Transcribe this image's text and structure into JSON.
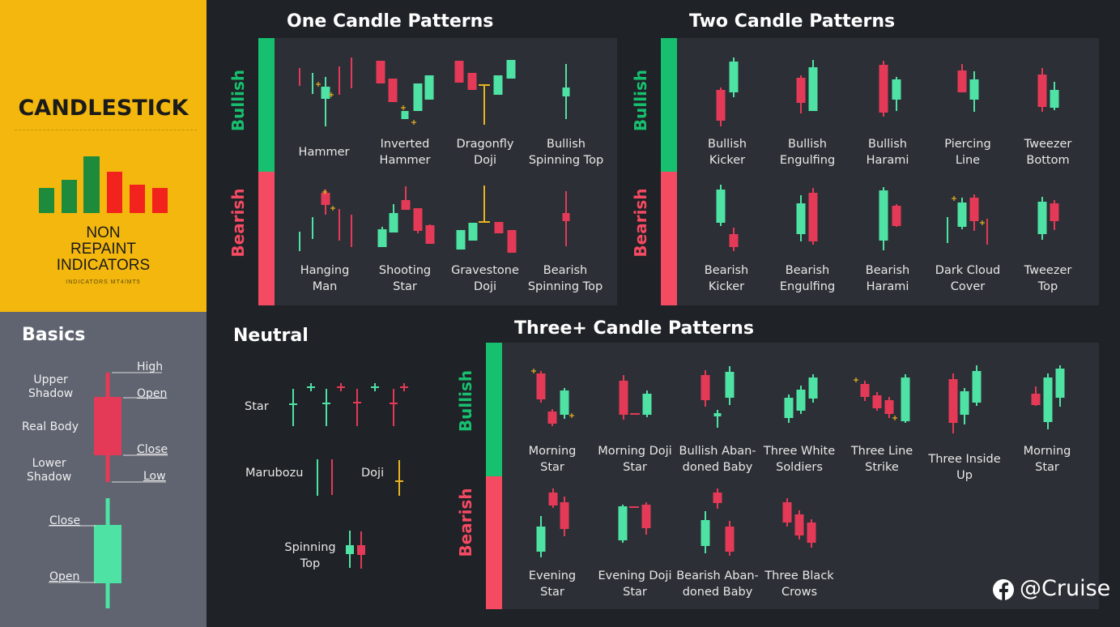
{
  "brand": {
    "title": "CANDLESTICK",
    "lines": [
      "NON",
      "REPAINT",
      "INDICATORS"
    ],
    "small": "INDICATORS MT4/MT5"
  },
  "colors": {
    "bull": "#4ee3a4",
    "bear": "#e43a57",
    "bull_strip": "#17c06f",
    "bear_strip": "#f44a62",
    "doji": "#e8b420",
    "panel": "#2c2f35",
    "yellow": "#f3b70d"
  },
  "sections": {
    "one": "One Candle Patterns",
    "two": "Two Candle Patterns",
    "neutral": "Neutral",
    "three": "Three+ Candle Patterns"
  },
  "labels": {
    "bullish": "Bullish",
    "bearish": "Bearish"
  },
  "basics": {
    "title": "Basics",
    "upper_shadow": [
      "Upper",
      "Shadow"
    ],
    "real_body": "Real Body",
    "lower_shadow": [
      "Lower",
      "Shadow"
    ],
    "high": "High",
    "open": "Open",
    "close": "Close",
    "low": "Low",
    "close2": "Close",
    "open2": "Open"
  },
  "one_candle": {
    "bullish": [
      [
        "Hammer"
      ],
      [
        "Inverted",
        "Hammer"
      ],
      [
        "Dragonfly",
        "Doji"
      ],
      [
        "Bullish",
        "Spinning Top"
      ]
    ],
    "bearish": [
      [
        "Hanging",
        "Man"
      ],
      [
        "Shooting",
        "Star"
      ],
      [
        "Gravestone",
        "Doji"
      ],
      [
        "Bearish",
        "Spinning Top"
      ]
    ]
  },
  "two_candle": {
    "bullish": [
      [
        "Bullish",
        "Kicker"
      ],
      [
        "Bullish",
        "Engulfing"
      ],
      [
        "Bullish",
        "Harami"
      ],
      [
        "Piercing",
        "Line"
      ],
      [
        "Tweezer",
        "Bottom"
      ]
    ],
    "bearish": [
      [
        "Bearish",
        "Kicker"
      ],
      [
        "Bearish",
        "Engulfing"
      ],
      [
        "Bearish",
        "Harami"
      ],
      [
        "Dark Cloud",
        "Cover"
      ],
      [
        "Tweezer",
        "Top"
      ]
    ]
  },
  "neutral": {
    "star": "Star",
    "marubozu": "Marubozu",
    "doji": "Doji",
    "spinning_top": [
      "Spinning",
      "Top"
    ]
  },
  "three_candle": {
    "bullish": [
      [
        "Morning",
        "Star"
      ],
      [
        "Morning Doji",
        "Star"
      ],
      [
        "Bullish Aban-",
        "doned Baby"
      ],
      [
        "Three White",
        "Soldiers"
      ],
      [
        "Three Line",
        "Strike"
      ],
      [
        "Three Inside",
        "Up"
      ],
      [
        "Morning",
        "Star"
      ]
    ],
    "bearish": [
      [
        "Evening",
        "Star"
      ],
      [
        "Evening Doji",
        "Star"
      ],
      [
        "Bearish Aban-",
        "doned Baby"
      ],
      [
        "Three Black",
        "Crows"
      ]
    ]
  },
  "watermark": "@Cruise"
}
